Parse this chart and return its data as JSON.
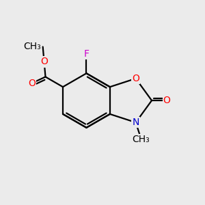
{
  "bg_color": "#ebebeb",
  "bond_color": "#000000",
  "bond_width": 1.6,
  "atom_colors": {
    "C": "#000000",
    "O": "#ff0000",
    "N": "#0000cc",
    "F": "#cc00cc"
  },
  "font_size": 10,
  "fig_size": [
    3.0,
    3.0
  ],
  "dpi": 100
}
